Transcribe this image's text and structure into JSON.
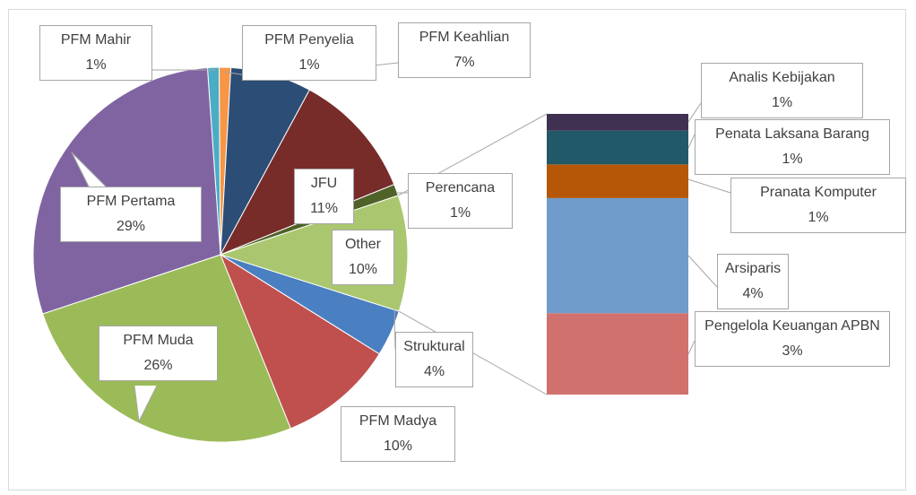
{
  "chart_data": [
    {
      "type": "pie",
      "categories": [
        "PFM Mahir",
        "PFM Penyelia",
        "PFM Keahlian",
        "JFU",
        "Perencana",
        "Other",
        "Struktural",
        "PFM Madya",
        "PFM Muda",
        "PFM Pertama"
      ],
      "values": [
        1,
        1,
        7,
        11,
        1,
        10,
        4,
        10,
        26,
        29
      ],
      "value_labels": [
        "1%",
        "1%",
        "7%",
        "11%",
        "1%",
        "10%",
        "4%",
        "10%",
        "26%",
        "29%"
      ],
      "colors": [
        "#4bacc6",
        "#f79646",
        "#2c4d75",
        "#772c2a",
        "#4f6228",
        "#aac76f",
        "#4a7fc1",
        "#c0504d",
        "#9bbb59",
        "#8064a2"
      ]
    },
    {
      "type": "bar",
      "categories": [
        "Pengelola Keuangan APBN",
        "Arsiparis",
        "Pranata Komputer",
        "Penata Laksana Barang",
        "Analis Kebijakan"
      ],
      "values": [
        2.9,
        4.1,
        1.2,
        1.2,
        0.6
      ],
      "value_labels": [
        "3%",
        "4%",
        "1%",
        "1%",
        "1%"
      ],
      "colors": [
        "#d0716d",
        "#6f9ccb",
        "#b65708",
        "#215968",
        "#403152"
      ]
    }
  ]
}
